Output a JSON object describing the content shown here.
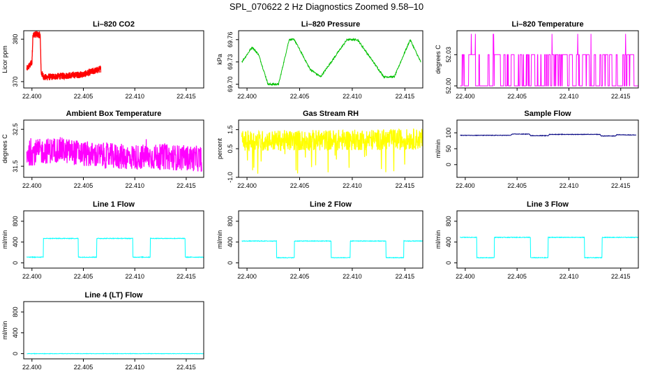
{
  "title": "SPL_070622  2 Hz Diagnostics Zoomed 9.58–10",
  "x_ticks": [
    22.4,
    22.405,
    22.41,
    22.415
  ],
  "x_tick_labels": [
    "22.400",
    "22.405",
    "22.410",
    "22.415"
  ],
  "x_range": [
    22.3992,
    22.4167
  ],
  "chart_data": [
    {
      "type": "line",
      "title": "Li–820 CO2",
      "ylabel": "Licor ppm",
      "color": "#ff0000",
      "ylim": [
        368.5,
        382.0
      ],
      "yticks": [
        370,
        380
      ],
      "ytick_labels": [
        "370",
        "380"
      ],
      "series": [
        {
          "x": [
            22.3995,
            22.4,
            22.4001,
            22.4008,
            22.4009,
            22.4012,
            22.405,
            22.4067
          ],
          "values": [
            373.0,
            374.5,
            381.2,
            381.0,
            372.0,
            371.0,
            371.7,
            373.0
          ]
        }
      ]
    },
    {
      "type": "line",
      "title": "Li–820 Pressure",
      "ylabel": "kPa",
      "color": "#00c000",
      "ylim": [
        69.695,
        69.772
      ],
      "yticks": [
        69.7,
        69.73,
        69.76
      ],
      "ytick_labels": [
        "69.70",
        "69.73",
        "69.76"
      ],
      "series": [
        {
          "x": [
            22.3995,
            22.4005,
            22.4011,
            22.402,
            22.403,
            22.404,
            22.4045,
            22.406,
            22.407,
            22.408,
            22.4095,
            22.4105,
            22.412,
            22.413,
            22.414,
            22.4155,
            22.4165
          ],
          "values": [
            69.73,
            69.75,
            69.74,
            69.7,
            69.7,
            69.76,
            69.76,
            69.72,
            69.71,
            69.73,
            69.76,
            69.76,
            69.73,
            69.71,
            69.71,
            69.76,
            69.73
          ]
        }
      ]
    },
    {
      "type": "line",
      "title": "Li–820 Temperature",
      "ylabel": "degrees C",
      "color": "#ff00ff",
      "ylim": [
        51.998,
        52.053
      ],
      "yticks": [
        52.0,
        52.03
      ],
      "ytick_labels": [
        "52.00",
        "52.03"
      ],
      "series": [
        {
          "x": [
            22.3995,
            22.4167
          ],
          "values": [
            52.0,
            52.03
          ]
        }
      ]
    },
    {
      "type": "line",
      "title": "Ambient Box Temperature",
      "ylabel": "degrees C",
      "color": "#ff00ff",
      "ylim": [
        31.2,
        32.75
      ],
      "yticks": [
        31.5,
        32.5
      ],
      "ytick_labels": [
        "31.5",
        "32.5"
      ],
      "series": [
        {
          "x": [
            22.3995,
            22.4025,
            22.406,
            22.4095,
            22.413,
            22.4165
          ],
          "values": [
            31.85,
            31.95,
            31.8,
            31.75,
            31.75,
            31.7
          ]
        }
      ]
    },
    {
      "type": "line",
      "title": "Gas Stream RH",
      "ylabel": "percent",
      "color": "#ffff00",
      "ylim": [
        -1.0,
        2.0
      ],
      "yticks": [
        -1.0,
        0.5,
        1.5
      ],
      "ytick_labels": [
        "-1.0",
        "0.5",
        "1.5"
      ],
      "series": [
        {
          "x": [
            22.3995,
            22.4167
          ],
          "values": [
            0.9,
            1.0
          ]
        }
      ]
    },
    {
      "type": "line",
      "title": "Sample Flow",
      "ylabel": "ml/min",
      "color": "#000080",
      "ylim": [
        -40,
        140
      ],
      "yticks": [
        0,
        50,
        100
      ],
      "ytick_labels": [
        "0",
        "50",
        "100"
      ],
      "series": [
        {
          "x": [
            22.3995,
            22.4044,
            22.4045,
            22.4062,
            22.4063,
            22.408,
            22.4081,
            22.413,
            22.4131,
            22.4145,
            22.4146,
            22.4165
          ],
          "values": [
            92,
            92,
            96,
            96,
            91,
            91,
            95,
            95,
            90,
            90,
            94,
            93
          ]
        }
      ]
    },
    {
      "type": "line",
      "title": "Line 1 Flow",
      "ylabel": "ml/min",
      "color": "#00ffff",
      "ylim": [
        -100,
        1000
      ],
      "yticks": [
        0,
        400,
        800
      ],
      "ytick_labels": [
        "0",
        "400",
        "800"
      ],
      "series": [
        {
          "x": [
            22.3995,
            22.4011,
            22.4011,
            22.4045,
            22.4045,
            22.4063,
            22.4063,
            22.4098,
            22.4098,
            22.4115,
            22.4115,
            22.4149,
            22.4149,
            22.4167
          ],
          "values": [
            110,
            110,
            470,
            470,
            110,
            110,
            470,
            470,
            110,
            110,
            470,
            470,
            110,
            110
          ]
        }
      ]
    },
    {
      "type": "line",
      "title": "Line 2 Flow",
      "ylabel": "ml/min",
      "color": "#00ffff",
      "ylim": [
        -100,
        1000
      ],
      "yticks": [
        0,
        400,
        800
      ],
      "ytick_labels": [
        "0",
        "400",
        "800"
      ],
      "series": [
        {
          "x": [
            22.3995,
            22.4028,
            22.4028,
            22.4045,
            22.4045,
            22.408,
            22.408,
            22.4098,
            22.4098,
            22.4132,
            22.4132,
            22.4149,
            22.4149,
            22.4167
          ],
          "values": [
            420,
            420,
            100,
            100,
            420,
            420,
            100,
            100,
            420,
            420,
            100,
            100,
            420,
            420
          ]
        }
      ]
    },
    {
      "type": "line",
      "title": "Line 3 Flow",
      "ylabel": "ml/min",
      "color": "#00ffff",
      "ylim": [
        -100,
        1000
      ],
      "yticks": [
        0,
        400,
        800
      ],
      "ytick_labels": [
        "0",
        "400",
        "800"
      ],
      "series": [
        {
          "x": [
            22.3995,
            22.4011,
            22.4011,
            22.4028,
            22.4028,
            22.4063,
            22.4063,
            22.408,
            22.408,
            22.4115,
            22.4115,
            22.4132,
            22.4132,
            22.4167
          ],
          "values": [
            490,
            490,
            100,
            100,
            490,
            490,
            100,
            100,
            490,
            490,
            100,
            100,
            490,
            490
          ]
        }
      ]
    },
    {
      "type": "line",
      "title": "Line 4 (LT) Flow",
      "ylabel": "ml/min",
      "color": "#00ffff",
      "ylim": [
        -100,
        1000
      ],
      "yticks": [
        0,
        400,
        800
      ],
      "ytick_labels": [
        "0",
        "400",
        "800"
      ],
      "series": [
        {
          "x": [
            22.3995,
            22.4167
          ],
          "values": [
            0,
            0
          ]
        }
      ]
    }
  ]
}
